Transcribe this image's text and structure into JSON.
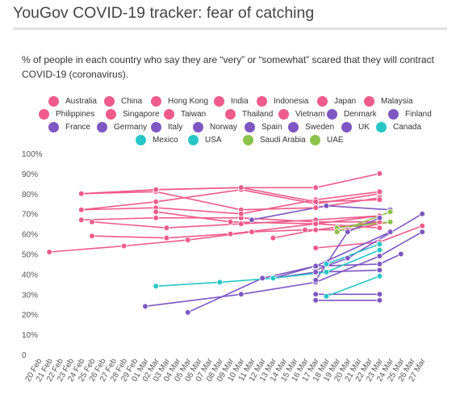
{
  "header": {
    "title": "YouGov COVID-19 tracker: fear of catching",
    "subtitle": "% of people in each country who say they are “very” or “somewhat” scared that they will contract COVID-19 (coronavirus)."
  },
  "chart_data": {
    "type": "line",
    "title": "YouGov COVID-19 tracker: fear of catching",
    "subtitle": "% of people in each country who say they are “very” or “somewhat” scared that they will contract COVID-19 (coronavirus).",
    "xlabel": "",
    "ylabel": "",
    "ylim": [
      0,
      100
    ],
    "yticks": [
      "0",
      "10%",
      "20%",
      "30%",
      "40%",
      "50%",
      "60%",
      "70%",
      "80%",
      "90%",
      "100%"
    ],
    "categories": [
      "20 Feb",
      "21 Feb",
      "22 Feb",
      "23 Feb",
      "24 Feb",
      "25 Feb",
      "26 Feb",
      "27 Feb",
      "28 Feb",
      "29 Feb",
      "01 Mar",
      "02 Mar",
      "03 Mar",
      "04 Mar",
      "05 Mar",
      "06 Mar",
      "07 Mar",
      "08 Mar",
      "09 Mar",
      "10 Mar",
      "11 Mar",
      "12 Mar",
      "13 Mar",
      "14 Mar",
      "15 Mar",
      "16 Mar",
      "17 Mar",
      "18 Mar",
      "19 Mar",
      "20 Mar",
      "21 Mar",
      "22 Mar",
      "23 Mar",
      "24 Mar",
      "25 Mar",
      "26 Mar",
      "27 Mar"
    ],
    "grid": false,
    "legend_position": "top",
    "series": [
      {
        "name": "Australia",
        "color": "#ef5b8a",
        "points": [
          [
            "21 Feb",
            51
          ],
          [
            "28 Feb",
            54
          ],
          [
            "05 Mar",
            57
          ],
          [
            "11 Mar",
            61
          ],
          [
            "16 Mar",
            62
          ],
          [
            "20 Mar",
            62
          ],
          [
            "24 Mar",
            66
          ]
        ]
      },
      {
        "name": "China",
        "color": "#ef5b8a",
        "points": [
          [
            "24 Feb",
            80
          ],
          [
            "02 Mar",
            82
          ],
          [
            "10 Mar",
            83
          ],
          [
            "17 Mar",
            83
          ],
          [
            "23 Mar",
            90
          ]
        ]
      },
      {
        "name": "Hong Kong",
        "color": "#ef5b8a",
        "points": [
          [
            "24 Feb",
            72
          ],
          [
            "02 Mar",
            76
          ],
          [
            "10 Mar",
            82
          ],
          [
            "17 Mar",
            75
          ],
          [
            "23 Mar",
            80
          ]
        ]
      },
      {
        "name": "India",
        "color": "#ef5b8a",
        "points": [
          [
            "24 Feb",
            67
          ],
          [
            "02 Mar",
            68
          ],
          [
            "10 Mar",
            68
          ],
          [
            "17 Mar",
            66
          ],
          [
            "23 Mar",
            66
          ]
        ]
      },
      {
        "name": "Indonesia",
        "color": "#ef5b8a",
        "points": [
          [
            "24 Feb",
            80
          ],
          [
            "02 Mar",
            81
          ],
          [
            "10 Mar",
            72
          ],
          [
            "17 Mar",
            73
          ],
          [
            "23 Mar",
            78
          ]
        ]
      },
      {
        "name": "Japan",
        "color": "#ef5b8a",
        "points": [
          [
            "25 Feb",
            66
          ],
          [
            "03 Mar",
            63
          ],
          [
            "10 Mar",
            65
          ],
          [
            "17 Mar",
            67
          ],
          [
            "23 Mar",
            69
          ]
        ]
      },
      {
        "name": "Malaysia",
        "color": "#ef5b8a",
        "points": [
          [
            "24 Feb",
            72
          ],
          [
            "02 Mar",
            73
          ],
          [
            "10 Mar",
            70
          ],
          [
            "17 Mar",
            77
          ],
          [
            "23 Mar",
            81
          ]
        ]
      },
      {
        "name": "Philippines",
        "color": "#ef5b8a",
        "points": [
          [
            "25 Feb",
            59
          ],
          [
            "03 Mar",
            58
          ],
          [
            "09 Mar",
            60
          ],
          [
            "17 Mar",
            65
          ],
          [
            "23 Mar",
            69
          ]
        ]
      },
      {
        "name": "Singapore",
        "color": "#ef5b8a",
        "points": [
          [
            "24 Feb",
            80
          ],
          [
            "02 Mar",
            82
          ],
          [
            "10 Mar",
            83
          ],
          [
            "17 Mar",
            76
          ],
          [
            "23 Mar",
            77
          ]
        ]
      },
      {
        "name": "Taiwan",
        "color": "#ef5b8a",
        "points": [
          [
            "02 Mar",
            71
          ],
          [
            "09 Mar",
            66
          ],
          [
            "17 Mar",
            65
          ],
          [
            "23 Mar",
            63
          ]
        ]
      },
      {
        "name": "Thailand",
        "color": "#ef5b8a",
        "points": [
          [
            "13 Mar",
            58
          ],
          [
            "17 Mar",
            62
          ],
          [
            "23 Mar",
            66
          ]
        ]
      },
      {
        "name": "Vietnam",
        "color": "#ef5b8a",
        "points": [
          [
            "17 Mar",
            53
          ],
          [
            "23 Mar",
            56
          ],
          [
            "27 Mar",
            64
          ]
        ]
      },
      {
        "name": "France",
        "color": "#7e57c2",
        "points": [
          [
            "17 Mar",
            27
          ],
          [
            "23 Mar",
            27
          ]
        ]
      },
      {
        "name": "Germany",
        "color": "#7e57c2",
        "points": [
          [
            "17 Mar",
            30
          ],
          [
            "23 Mar",
            30
          ]
        ]
      },
      {
        "name": "Italy",
        "color": "#7e57c2",
        "points": [
          [
            "01 Mar",
            24
          ],
          [
            "10 Mar",
            30
          ],
          [
            "17 Mar",
            36
          ],
          [
            "23 Mar",
            49
          ],
          [
            "27 Mar",
            61
          ]
        ]
      },
      {
        "name": "Norway",
        "color": "#7e57c2",
        "points": [
          [
            "05 Mar",
            21
          ],
          [
            "12 Mar",
            38
          ],
          [
            "17 Mar",
            44
          ],
          [
            "24 Mar",
            61
          ]
        ]
      },
      {
        "name": "Spain",
        "color": "#7e57c2",
        "points": [
          [
            "17 Mar",
            42
          ],
          [
            "20 Mar",
            48
          ],
          [
            "27 Mar",
            70
          ]
        ]
      },
      {
        "name": "Sweden",
        "color": "#7e57c2",
        "points": [
          [
            "13 Mar",
            38
          ],
          [
            "17 Mar",
            44
          ],
          [
            "23 Mar",
            45
          ],
          [
            "25 Mar",
            50
          ]
        ]
      },
      {
        "name": "UK",
        "color": "#7e57c2",
        "points": [
          [
            "11 Mar",
            67
          ],
          [
            "18 Mar",
            74
          ],
          [
            "24 Mar",
            72
          ]
        ]
      },
      {
        "name": "Denmark",
        "color": "#7e57c2",
        "points": [
          [
            "13 Mar",
            38
          ],
          [
            "17 Mar",
            41
          ],
          [
            "23 Mar",
            42
          ]
        ]
      },
      {
        "name": "Finland",
        "color": "#7e57c2",
        "points": [
          [
            "17 Mar",
            37
          ],
          [
            "20 Mar",
            61
          ],
          [
            "23 Mar",
            68
          ]
        ]
      },
      {
        "name": "Canada",
        "color": "#26c6c6",
        "points": [
          [
            "18 Mar",
            45
          ],
          [
            "23 Mar",
            55
          ]
        ]
      },
      {
        "name": "Mexico",
        "color": "#26c6c6",
        "points": [
          [
            "02 Mar",
            34
          ],
          [
            "08 Mar",
            36
          ],
          [
            "13 Mar",
            38
          ],
          [
            "18 Mar",
            41
          ],
          [
            "23 Mar",
            52
          ]
        ]
      },
      {
        "name": "USA",
        "color": "#26c6c6",
        "points": [
          [
            "18 Mar",
            29
          ],
          [
            "23 Mar",
            39
          ]
        ]
      },
      {
        "name": "Saudi Arabia",
        "color": "#8bc34a",
        "points": [
          [
            "19 Mar",
            63
          ],
          [
            "24 Mar",
            66
          ]
        ]
      },
      {
        "name": "UAE",
        "color": "#8bc34a",
        "points": [
          [
            "19 Mar",
            61
          ],
          [
            "24 Mar",
            71
          ]
        ]
      }
    ]
  }
}
